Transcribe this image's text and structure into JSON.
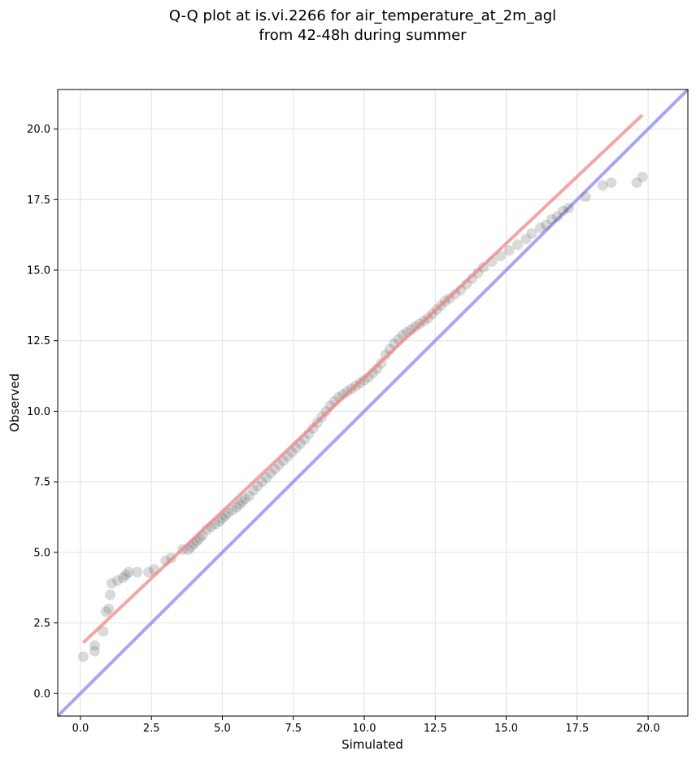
{
  "chart_data": {
    "type": "scatter",
    "title_lines": [
      "Q-Q plot at is.vi.2266 for air_temperature_at_2m_agl",
      "from 42-48h during summer"
    ],
    "xlabel": "Simulated",
    "ylabel": "Observed",
    "xlim": [
      -0.8,
      21.4
    ],
    "ylim": [
      -0.8,
      21.4
    ],
    "xticks": [
      0.0,
      2.5,
      5.0,
      7.5,
      10.0,
      12.5,
      15.0,
      17.5,
      20.0
    ],
    "yticks": [
      0.0,
      2.5,
      5.0,
      7.5,
      10.0,
      12.5,
      15.0,
      17.5,
      20.0
    ],
    "tick_labels_x": [
      "0.0",
      "2.5",
      "5.0",
      "7.5",
      "10.0",
      "12.5",
      "15.0",
      "17.5",
      "20.0"
    ],
    "tick_labels_y": [
      "0.0",
      "2.5",
      "5.0",
      "7.5",
      "10.0",
      "12.5",
      "15.0",
      "17.5",
      "20.0"
    ],
    "grid": true,
    "series": [
      {
        "kind": "quantile_points",
        "color": "#555555",
        "points": [
          [
            0.1,
            1.3
          ],
          [
            0.5,
            1.5
          ],
          [
            0.5,
            1.7
          ],
          [
            0.8,
            2.2
          ],
          [
            0.9,
            2.9
          ],
          [
            1.0,
            3.0
          ],
          [
            1.05,
            3.5
          ],
          [
            1.1,
            3.9
          ],
          [
            1.3,
            4.0
          ],
          [
            1.5,
            4.1
          ],
          [
            1.6,
            4.2
          ],
          [
            1.7,
            4.3
          ],
          [
            2.0,
            4.3
          ],
          [
            2.4,
            4.3
          ],
          [
            2.6,
            4.4
          ],
          [
            3.0,
            4.7
          ],
          [
            3.2,
            4.8
          ],
          [
            3.6,
            5.1
          ],
          [
            3.8,
            5.1
          ],
          [
            3.9,
            5.2
          ],
          [
            4.0,
            5.3
          ],
          [
            4.1,
            5.4
          ],
          [
            4.2,
            5.5
          ],
          [
            4.3,
            5.6
          ],
          [
            4.45,
            5.8
          ],
          [
            4.6,
            5.9
          ],
          [
            4.75,
            6.0
          ],
          [
            4.9,
            6.1
          ],
          [
            5.0,
            6.2
          ],
          [
            5.1,
            6.3
          ],
          [
            5.2,
            6.4
          ],
          [
            5.35,
            6.5
          ],
          [
            5.5,
            6.6
          ],
          [
            5.6,
            6.7
          ],
          [
            5.7,
            6.8
          ],
          [
            5.8,
            6.9
          ],
          [
            5.95,
            7.0
          ],
          [
            6.1,
            7.2
          ],
          [
            6.25,
            7.35
          ],
          [
            6.4,
            7.5
          ],
          [
            6.55,
            7.65
          ],
          [
            6.7,
            7.8
          ],
          [
            6.85,
            7.95
          ],
          [
            7.0,
            8.1
          ],
          [
            7.15,
            8.25
          ],
          [
            7.3,
            8.4
          ],
          [
            7.45,
            8.55
          ],
          [
            7.6,
            8.7
          ],
          [
            7.75,
            8.85
          ],
          [
            7.9,
            9.0
          ],
          [
            8.05,
            9.2
          ],
          [
            8.2,
            9.4
          ],
          [
            8.35,
            9.6
          ],
          [
            8.5,
            9.8
          ],
          [
            8.65,
            10.0
          ],
          [
            8.8,
            10.2
          ],
          [
            8.95,
            10.35
          ],
          [
            9.1,
            10.5
          ],
          [
            9.25,
            10.6
          ],
          [
            9.4,
            10.7
          ],
          [
            9.55,
            10.8
          ],
          [
            9.7,
            10.9
          ],
          [
            9.85,
            11.0
          ],
          [
            10.0,
            11.1
          ],
          [
            10.15,
            11.2
          ],
          [
            10.3,
            11.35
          ],
          [
            10.45,
            11.5
          ],
          [
            10.6,
            11.7
          ],
          [
            10.75,
            12.0
          ],
          [
            10.9,
            12.2
          ],
          [
            11.05,
            12.4
          ],
          [
            11.2,
            12.55
          ],
          [
            11.35,
            12.7
          ],
          [
            11.5,
            12.8
          ],
          [
            11.65,
            12.9
          ],
          [
            11.8,
            13.0
          ],
          [
            11.95,
            13.1
          ],
          [
            12.1,
            13.2
          ],
          [
            12.25,
            13.3
          ],
          [
            12.4,
            13.45
          ],
          [
            12.55,
            13.6
          ],
          [
            12.7,
            13.75
          ],
          [
            12.85,
            13.9
          ],
          [
            13.0,
            14.0
          ],
          [
            13.2,
            14.15
          ],
          [
            13.4,
            14.3
          ],
          [
            13.6,
            14.5
          ],
          [
            13.8,
            14.7
          ],
          [
            14.0,
            14.9
          ],
          [
            14.2,
            15.1
          ],
          [
            14.5,
            15.3
          ],
          [
            14.8,
            15.5
          ],
          [
            15.1,
            15.7
          ],
          [
            15.4,
            15.9
          ],
          [
            15.7,
            16.1
          ],
          [
            15.9,
            16.3
          ],
          [
            16.2,
            16.5
          ],
          [
            16.4,
            16.6
          ],
          [
            16.6,
            16.8
          ],
          [
            16.8,
            16.9
          ],
          [
            17.0,
            17.1
          ],
          [
            17.2,
            17.2
          ],
          [
            17.8,
            17.6
          ],
          [
            18.4,
            18.0
          ],
          [
            18.7,
            18.1
          ],
          [
            19.6,
            18.1
          ],
          [
            19.8,
            18.3
          ]
        ]
      },
      {
        "kind": "fit_line",
        "color": "#f08080",
        "from": [
          0.1,
          1.8
        ],
        "to": [
          19.8,
          20.5
        ]
      },
      {
        "kind": "identity_line",
        "color": "#8080f0",
        "from": [
          -0.8,
          -0.8
        ],
        "to": [
          21.4,
          21.4
        ]
      }
    ]
  }
}
